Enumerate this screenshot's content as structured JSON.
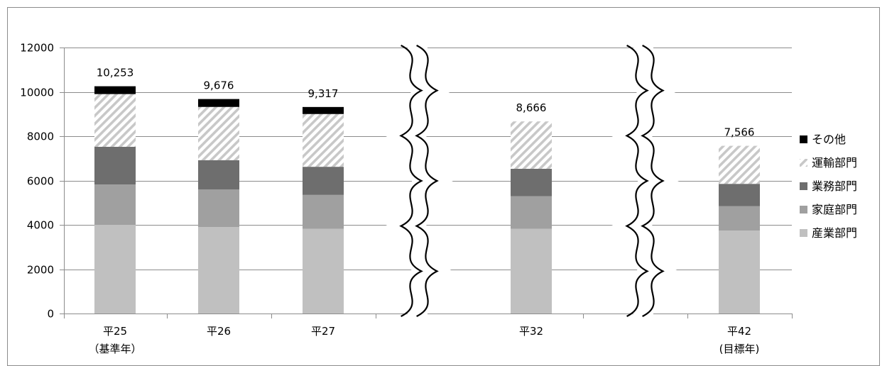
{
  "chart_data": {
    "type": "bar",
    "stacked": true,
    "title": "",
    "xlabel": "",
    "ylabel": "",
    "ylim": [
      0,
      12000
    ],
    "yticks": [
      0,
      2000,
      4000,
      6000,
      8000,
      10000,
      12000
    ],
    "grid": true,
    "legend_position": "right",
    "categories": [
      {
        "line1": "平25",
        "line2": "（基準年）"
      },
      {
        "line1": "平26",
        "line2": ""
      },
      {
        "line1": "平27",
        "line2": ""
      },
      {
        "line1": "平32",
        "line2": ""
      },
      {
        "line1": "平42",
        "line2": "(目標年)"
      }
    ],
    "axis_breaks": [
      "between 平27 and 平32",
      "between 平32 and 平42"
    ],
    "totals": [
      "10,253",
      "9,676",
      "9,317",
      "8,666",
      "7,566"
    ],
    "series": [
      {
        "name": "産業部門",
        "color": "#c0c0c0",
        "pattern": "solid",
        "values": [
          4000,
          3900,
          3820,
          3820,
          3740
        ]
      },
      {
        "name": "家庭部門",
        "color": "#a0a0a0",
        "pattern": "solid",
        "values": [
          1820,
          1700,
          1530,
          1470,
          1100
        ]
      },
      {
        "name": "業務部門",
        "color": "#6e6e6e",
        "pattern": "solid",
        "values": [
          1700,
          1320,
          1270,
          1240,
          1010
        ]
      },
      {
        "name": "運輸部門",
        "color": "#c8c8c8",
        "pattern": "hatch",
        "values": [
          2380,
          2400,
          2380,
          2136,
          1716
        ]
      },
      {
        "name": "その他",
        "color": "#000000",
        "pattern": "solid",
        "values": [
          353,
          356,
          317,
          0,
          0
        ]
      }
    ]
  }
}
